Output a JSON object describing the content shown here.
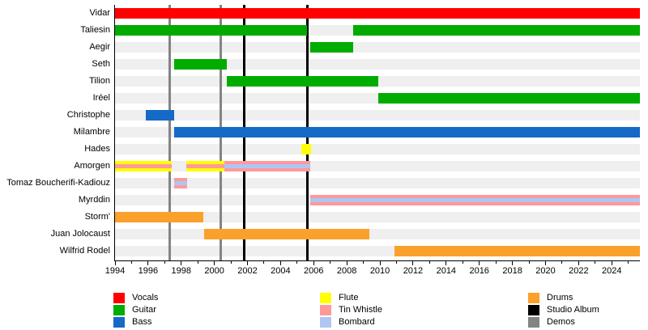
{
  "chart_data": {
    "type": "timeline",
    "x_axis": {
      "min": 1994,
      "max": 2025.7,
      "year_labels": [
        "1994",
        "1996",
        "1998",
        "2000",
        "2002",
        "2004",
        "2006",
        "2008",
        "2010",
        "2012",
        "2014",
        "2016",
        "2018",
        "2020",
        "2022",
        "2024"
      ]
    },
    "row_background": "#EFEFEF",
    "axis_color": "#000000",
    "colors": {
      "Vocals": "#FF0000",
      "Guitar": "#00AC00",
      "Bass": "#1569C7",
      "Flute": "#FFFF00",
      "Tin Whistle": "#FF9999",
      "Bombard": "#AEC6F2",
      "Drums": "#F9A12B",
      "Studio Album": "#000000",
      "Demos": "#848484"
    },
    "members": [
      {
        "name": "Vidar",
        "segments": [
          {
            "roles": [
              "Vocals"
            ],
            "start": 1994,
            "end": 2025.7
          }
        ]
      },
      {
        "name": "Taliesin",
        "segments": [
          {
            "roles": [
              "Guitar"
            ],
            "start": 1994,
            "end": 2005.6
          },
          {
            "roles": [
              "Guitar"
            ],
            "start": 2008.4,
            "end": 2025.7
          }
        ]
      },
      {
        "name": "Aegir",
        "segments": [
          {
            "roles": [
              "Guitar"
            ],
            "start": 2005.8,
            "end": 2008.4
          }
        ]
      },
      {
        "name": "Seth",
        "segments": [
          {
            "roles": [
              "Guitar"
            ],
            "start": 1997.55,
            "end": 2000.75
          }
        ]
      },
      {
        "name": "Tilion",
        "segments": [
          {
            "roles": [
              "Guitar"
            ],
            "start": 2000.75,
            "end": 2009.9
          }
        ]
      },
      {
        "name": "Iréel",
        "segments": [
          {
            "roles": [
              "Guitar"
            ],
            "start": 2009.9,
            "end": 2025.7
          }
        ]
      },
      {
        "name": "Christophe",
        "segments": [
          {
            "roles": [
              "Bass"
            ],
            "start": 1995.85,
            "end": 1997.55
          }
        ]
      },
      {
        "name": "Milambre",
        "segments": [
          {
            "roles": [
              "Bass"
            ],
            "start": 1997.55,
            "end": 2025.7
          }
        ]
      },
      {
        "name": "Hades",
        "segments": [
          {
            "roles": [
              "Flute"
            ],
            "start": 2005.25,
            "end": 2005.85
          }
        ]
      },
      {
        "name": "Amorgen",
        "segments": [
          {
            "roles": [
              "Flute",
              "Tin Whistle"
            ],
            "start": 1994,
            "end": 1997.4
          },
          {
            "roles": [
              "Flute",
              "Tin Whistle"
            ],
            "start": 1998.3,
            "end": 2000.6
          },
          {
            "roles": [
              "Tin Whistle",
              "Bombard"
            ],
            "start": 2000.6,
            "end": 2005.8
          }
        ]
      },
      {
        "name": "Tomaz Boucherifi-Kadiouz",
        "segments": [
          {
            "roles": [
              "Tin Whistle",
              "Bombard"
            ],
            "start": 1997.55,
            "end": 1998.35
          }
        ]
      },
      {
        "name": "Myrddin",
        "segments": [
          {
            "roles": [
              "Tin Whistle",
              "Bombard"
            ],
            "start": 2005.8,
            "end": 2025.7
          }
        ]
      },
      {
        "name": "Storm'",
        "segments": [
          {
            "roles": [
              "Drums"
            ],
            "start": 1994,
            "end": 1999.35
          }
        ]
      },
      {
        "name": "Juan Jolocaust",
        "segments": [
          {
            "roles": [
              "Drums"
            ],
            "start": 1999.4,
            "end": 2009.35
          }
        ]
      },
      {
        "name": "Wilfrid Rodel",
        "segments": [
          {
            "roles": [
              "Drums"
            ],
            "start": 2010.9,
            "end": 2025.7
          }
        ]
      }
    ],
    "events": [
      {
        "type": "Demos",
        "year": 1997.3
      },
      {
        "type": "Demos",
        "year": 2000.4
      },
      {
        "type": "Studio Album",
        "year": 2001.8
      },
      {
        "type": "Studio Album",
        "year": 2005.6
      }
    ],
    "legend_columns": [
      [
        "Vocals",
        "Guitar",
        "Bass"
      ],
      [
        "Flute",
        "Tin Whistle",
        "Bombard"
      ],
      [
        "Drums",
        "Studio Album",
        "Demos"
      ]
    ]
  }
}
